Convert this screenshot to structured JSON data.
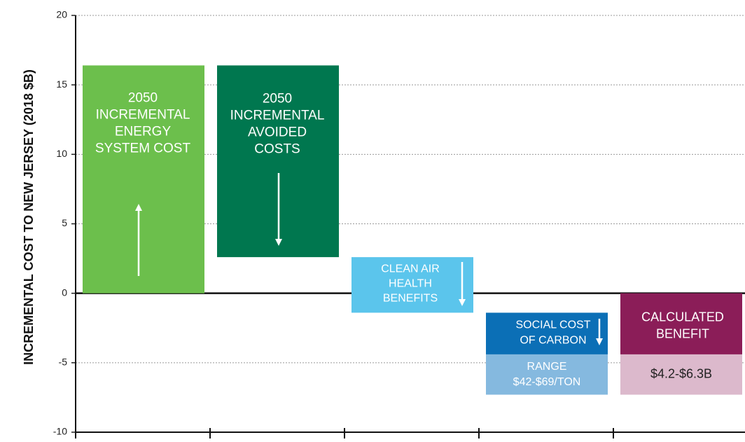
{
  "chart_data": {
    "type": "waterfall",
    "y_label": "INCREMENTAL COST TO NEW JERSEY (2018 $B)",
    "ylim": [
      -10,
      20
    ],
    "yticks": [
      -10,
      -5,
      0,
      5,
      10,
      15,
      20
    ],
    "grid": true,
    "steps": [
      {
        "label": [
          "2050",
          "INCREMENTAL",
          "ENERGY",
          "SYSTEM COST"
        ],
        "value": 16.4,
        "color": "#6cbf4c"
      },
      {
        "label": [
          "2050",
          "INCREMENTAL",
          "AVOIDED",
          "COSTS"
        ],
        "value": -13.8,
        "color": "#00774f"
      },
      {
        "label": [
          "CLEAN AIR",
          "HEALTH",
          "BENEFITS"
        ],
        "value": -4.0,
        "color": "#5bc5ec"
      },
      {
        "label": [
          "SOCIAL COST",
          "OF CARBON"
        ],
        "value": -3.0,
        "color": "#0b6fb6",
        "range": {
          "label": [
            "RANGE",
            "$42-$69/TON"
          ],
          "value": -2.9,
          "color": "#85b9df",
          "text_color": "#ffffff"
        }
      },
      {
        "label": [
          "CALCULATED",
          "BENEFIT"
        ],
        "value": -4.4,
        "color": "#8b1d58",
        "total": true,
        "range": {
          "label": [
            "$4.2-$6.3B"
          ],
          "value": -2.9,
          "color": "#dcb9cc",
          "text_color": "#222222"
        }
      }
    ]
  }
}
